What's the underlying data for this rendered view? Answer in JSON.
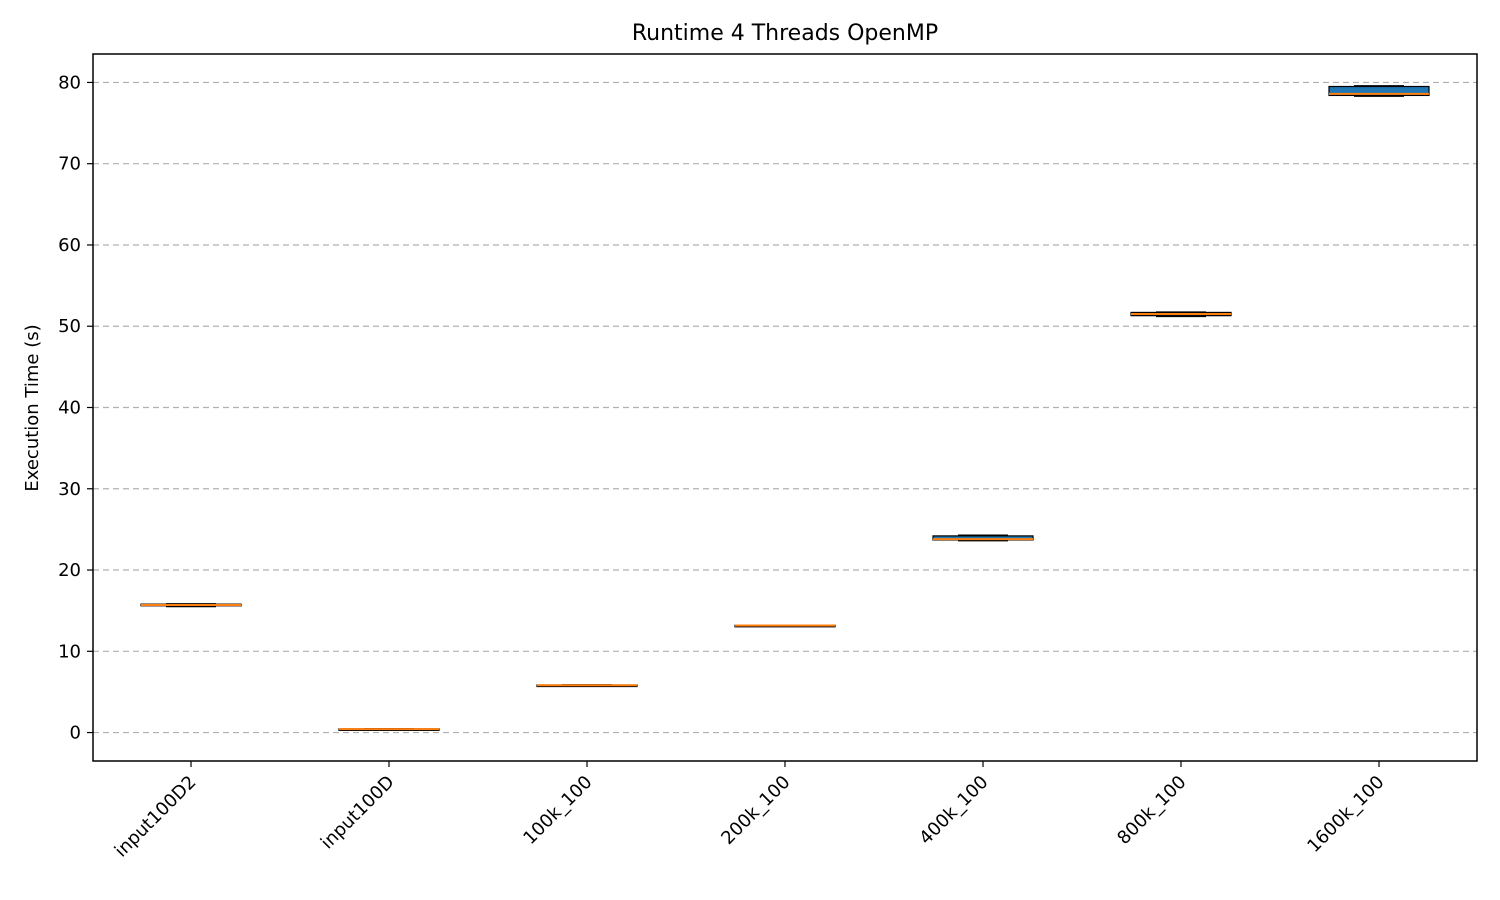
{
  "chart_data": {
    "type": "box",
    "title": "Runtime 4 Threads OpenMP",
    "xlabel": "",
    "ylabel": "Execution Time (s)",
    "ylim": [
      -3.5,
      83.5
    ],
    "yticks": [
      0,
      10,
      20,
      30,
      40,
      50,
      60,
      70,
      80
    ],
    "grid": "y-dashed",
    "categories": [
      "input100D2",
      "input100D",
      "100k_100",
      "200k_100",
      "400k_100",
      "800k_100",
      "1600k_100"
    ],
    "boxes": [
      {
        "whisker_low": 15.5,
        "q1": 15.6,
        "median": 15.7,
        "q3": 15.8,
        "whisker_high": 15.85
      },
      {
        "whisker_low": 0.35,
        "q1": 0.4,
        "median": 0.42,
        "q3": 0.45,
        "whisker_high": 0.48
      },
      {
        "whisker_low": 5.75,
        "q1": 5.8,
        "median": 5.82,
        "q3": 5.85,
        "whisker_high": 5.88
      },
      {
        "whisker_low": 13.1,
        "q1": 13.15,
        "median": 13.17,
        "q3": 13.2,
        "whisker_high": 13.22
      },
      {
        "whisker_low": 23.6,
        "q1": 23.7,
        "median": 23.8,
        "q3": 24.2,
        "whisker_high": 24.3
      },
      {
        "whisker_low": 51.2,
        "q1": 51.3,
        "median": 51.5,
        "q3": 51.7,
        "whisker_high": 51.75
      },
      {
        "whisker_low": 78.3,
        "q1": 78.4,
        "median": 78.6,
        "q3": 79.5,
        "whisker_high": 79.6
      }
    ],
    "colors": {
      "box_fill": "#1f77b4",
      "median": "#ff7f0e",
      "edge": "#000000",
      "grid": "#b0b0b0"
    }
  }
}
